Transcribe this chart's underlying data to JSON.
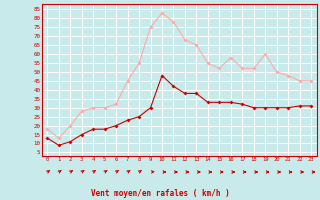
{
  "x": [
    0,
    1,
    2,
    3,
    4,
    5,
    6,
    7,
    8,
    9,
    10,
    11,
    12,
    13,
    14,
    15,
    16,
    17,
    18,
    19,
    20,
    21,
    22,
    23
  ],
  "wind_avg": [
    13,
    9,
    11,
    15,
    18,
    18,
    20,
    23,
    25,
    30,
    48,
    42,
    38,
    38,
    33,
    33,
    33,
    32,
    30,
    30,
    30,
    30,
    31,
    31
  ],
  "wind_gust": [
    18,
    13,
    20,
    28,
    30,
    30,
    32,
    45,
    55,
    75,
    83,
    78,
    68,
    65,
    55,
    52,
    58,
    52,
    52,
    60,
    50,
    48,
    45,
    45
  ],
  "bg_color": "#c8eaea",
  "grid_color": "#ffffff",
  "line_avg_color": "#cc0000",
  "line_gust_color": "#ffaaaa",
  "xlabel": "Vent moyen/en rafales ( km/h )",
  "yticks": [
    5,
    10,
    15,
    20,
    25,
    30,
    35,
    40,
    45,
    50,
    55,
    60,
    65,
    70,
    75,
    80,
    85
  ],
  "ylim": [
    3,
    88
  ],
  "xlim": [
    -0.5,
    23.5
  ],
  "arrow_angles_deg": [
    45,
    45,
    45,
    45,
    45,
    45,
    45,
    45,
    45,
    10,
    0,
    0,
    0,
    0,
    0,
    0,
    0,
    0,
    0,
    0,
    0,
    0,
    0,
    0
  ]
}
